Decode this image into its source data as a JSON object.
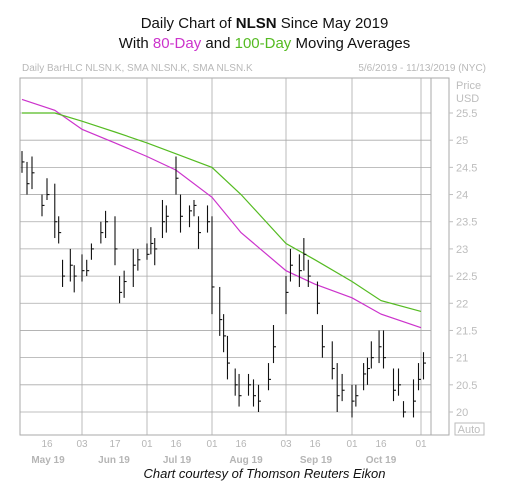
{
  "title": {
    "line1_prefix": "Daily Chart of ",
    "line1_ticker": "NLSN",
    "line1_suffix": " Since May 2019",
    "line2_prefix": "With ",
    "line2_series1": "80-Day",
    "line2_mid": " and ",
    "line2_series2": "100-Day",
    "line2_suffix": " Moving Averages"
  },
  "header_left": "Daily BarHLC NLSN.K, SMA NLSN.K, SMA NLSN.K",
  "header_right": "5/6/2019 - 11/13/2019 (NYC)",
  "price_label": "Price",
  "currency_label": "USD",
  "auto_label": "Auto",
  "credit": "Chart courtesy of Thomson Reuters Eikon",
  "colors": {
    "bars": "#111111",
    "sma80": "#cc33cc",
    "sma100": "#55bb22",
    "grid": "#aaaaaa",
    "title": "#111111"
  },
  "chart_data": {
    "type": "line",
    "title": "Daily Chart of NLSN Since May 2019 With 80-Day and 100-Day Moving Averages",
    "ylabel": "Price USD",
    "ylim": [
      19.7,
      26.3
    ],
    "yticks": [
      20,
      20.5,
      21,
      21.5,
      22,
      22.5,
      23,
      23.5,
      24,
      24.5,
      25,
      25.5
    ],
    "date_range": "5/6/2019 - 11/13/2019",
    "x_ticks": [
      "16",
      "03",
      "17",
      "01",
      "16",
      "01",
      "16",
      "03",
      "16",
      "01",
      "16",
      "01"
    ],
    "x_months": [
      "May 19",
      "Jun 19",
      "Jul 19",
      "Aug 19",
      "Sep 19",
      "Oct 19"
    ],
    "grid": true,
    "series": [
      {
        "name": "80-Day",
        "style": "line",
        "points": [
          [
            "5/6",
            25.75
          ],
          [
            "5/20",
            25.55
          ],
          [
            "6/3",
            25.2
          ],
          [
            "6/17",
            24.95
          ],
          [
            "7/1",
            24.7
          ],
          [
            "7/16",
            24.45
          ],
          [
            "8/1",
            23.95
          ],
          [
            "8/16",
            23.3
          ],
          [
            "9/3",
            22.6
          ],
          [
            "9/16",
            22.35
          ],
          [
            "10/1",
            22.1
          ],
          [
            "10/16",
            21.8
          ],
          [
            "11/1",
            21.55
          ]
        ]
      },
      {
        "name": "100-Day",
        "style": "line",
        "points": [
          [
            "5/6",
            25.5
          ],
          [
            "5/20",
            25.5
          ],
          [
            "6/3",
            25.35
          ],
          [
            "6/17",
            25.15
          ],
          [
            "7/1",
            24.95
          ],
          [
            "7/16",
            24.75
          ],
          [
            "8/1",
            24.5
          ],
          [
            "8/16",
            24.0
          ],
          [
            "9/3",
            23.1
          ],
          [
            "9/16",
            22.8
          ],
          [
            "10/1",
            22.4
          ],
          [
            "10/16",
            22.05
          ],
          [
            "11/1",
            21.85
          ]
        ]
      },
      {
        "name": "Daily BarHLC NLSN.K",
        "style": "ohlc",
        "points": [
          [
            "5/6",
            24.8,
            24.4,
            24.6
          ],
          [
            "5/8",
            24.6,
            24.0,
            24.2
          ],
          [
            "5/10",
            24.7,
            24.1,
            24.4
          ],
          [
            "5/14",
            24.0,
            23.6,
            23.8
          ],
          [
            "5/16",
            24.3,
            23.9,
            24.0
          ],
          [
            "5/20",
            24.2,
            23.2,
            23.5
          ],
          [
            "5/22",
            23.6,
            23.1,
            23.3
          ],
          [
            "5/24",
            22.8,
            22.3,
            22.5
          ],
          [
            "5/28",
            23.0,
            22.4,
            22.7
          ],
          [
            "5/30",
            22.7,
            22.2,
            22.5
          ],
          [
            "6/3",
            22.9,
            22.4,
            22.6
          ],
          [
            "6/5",
            22.8,
            22.5,
            22.6
          ],
          [
            "6/7",
            23.1,
            22.8,
            23.0
          ],
          [
            "6/11",
            23.5,
            23.1,
            23.3
          ],
          [
            "6/13",
            23.7,
            23.2,
            23.5
          ],
          [
            "6/17",
            23.6,
            22.7,
            23.0
          ],
          [
            "6/19",
            22.5,
            22.0,
            22.2
          ],
          [
            "6/21",
            22.6,
            22.1,
            22.4
          ],
          [
            "6/25",
            23.0,
            22.3,
            22.7
          ],
          [
            "6/27",
            23.0,
            22.6,
            22.8
          ],
          [
            "7/1",
            23.1,
            22.8,
            22.9
          ],
          [
            "7/3",
            23.4,
            22.9,
            23.1
          ],
          [
            "7/5",
            23.2,
            22.7,
            23.0
          ],
          [
            "7/9",
            23.9,
            23.2,
            23.5
          ],
          [
            "7/11",
            23.8,
            23.3,
            23.6
          ],
          [
            "7/16",
            24.7,
            24.0,
            24.3
          ],
          [
            "7/18",
            24.0,
            23.3,
            23.6
          ],
          [
            "7/22",
            23.8,
            23.4,
            23.7
          ],
          [
            "7/24",
            23.9,
            23.6,
            23.8
          ],
          [
            "7/26",
            23.6,
            23.0,
            23.3
          ],
          [
            "7/30",
            23.8,
            23.3,
            23.5
          ],
          [
            "8/1",
            23.6,
            21.8,
            22.3
          ],
          [
            "8/5",
            22.3,
            21.4,
            21.7
          ],
          [
            "8/7",
            21.8,
            21.1,
            21.4
          ],
          [
            "8/9",
            21.4,
            20.6,
            20.9
          ],
          [
            "8/13",
            20.8,
            20.3,
            20.5
          ],
          [
            "8/15",
            20.7,
            20.1,
            20.3
          ],
          [
            "8/19",
            20.7,
            20.3,
            20.5
          ],
          [
            "8/21",
            20.6,
            20.1,
            20.3
          ],
          [
            "8/23",
            20.5,
            20.0,
            20.2
          ],
          [
            "8/27",
            20.9,
            20.4,
            20.6
          ],
          [
            "8/29",
            21.6,
            20.9,
            21.2
          ],
          [
            "9/3",
            22.5,
            21.8,
            22.2
          ],
          [
            "9/5",
            23.0,
            22.4,
            22.7
          ],
          [
            "9/9",
            22.9,
            22.3,
            22.6
          ],
          [
            "9/11",
            23.2,
            22.6,
            22.9
          ],
          [
            "9/13",
            22.8,
            22.3,
            22.5
          ],
          [
            "9/17",
            22.4,
            21.8,
            22.0
          ],
          [
            "9/19",
            21.6,
            21.0,
            21.2
          ],
          [
            "9/23",
            21.3,
            20.6,
            20.8
          ],
          [
            "9/25",
            20.9,
            20.0,
            20.3
          ],
          [
            "9/27",
            20.7,
            20.2,
            20.4
          ],
          [
            "10/1",
            20.5,
            19.9,
            20.2
          ],
          [
            "10/3",
            20.5,
            20.1,
            20.3
          ],
          [
            "10/7",
            20.9,
            20.4,
            20.7
          ],
          [
            "10/9",
            21.0,
            20.5,
            20.8
          ],
          [
            "10/11",
            21.3,
            20.8,
            21.0
          ],
          [
            "10/15",
            21.5,
            20.9,
            21.2
          ],
          [
            "10/17",
            21.5,
            20.8,
            21.0
          ],
          [
            "10/21",
            20.8,
            20.2,
            20.4
          ],
          [
            "10/23",
            20.8,
            20.3,
            20.5
          ],
          [
            "10/25",
            20.2,
            19.9,
            20.0
          ],
          [
            "10/29",
            20.6,
            19.9,
            20.2
          ],
          [
            "10/31",
            20.9,
            20.4,
            20.6
          ],
          [
            "11/4",
            21.1,
            20.6,
            20.9
          ]
        ]
      }
    ]
  }
}
